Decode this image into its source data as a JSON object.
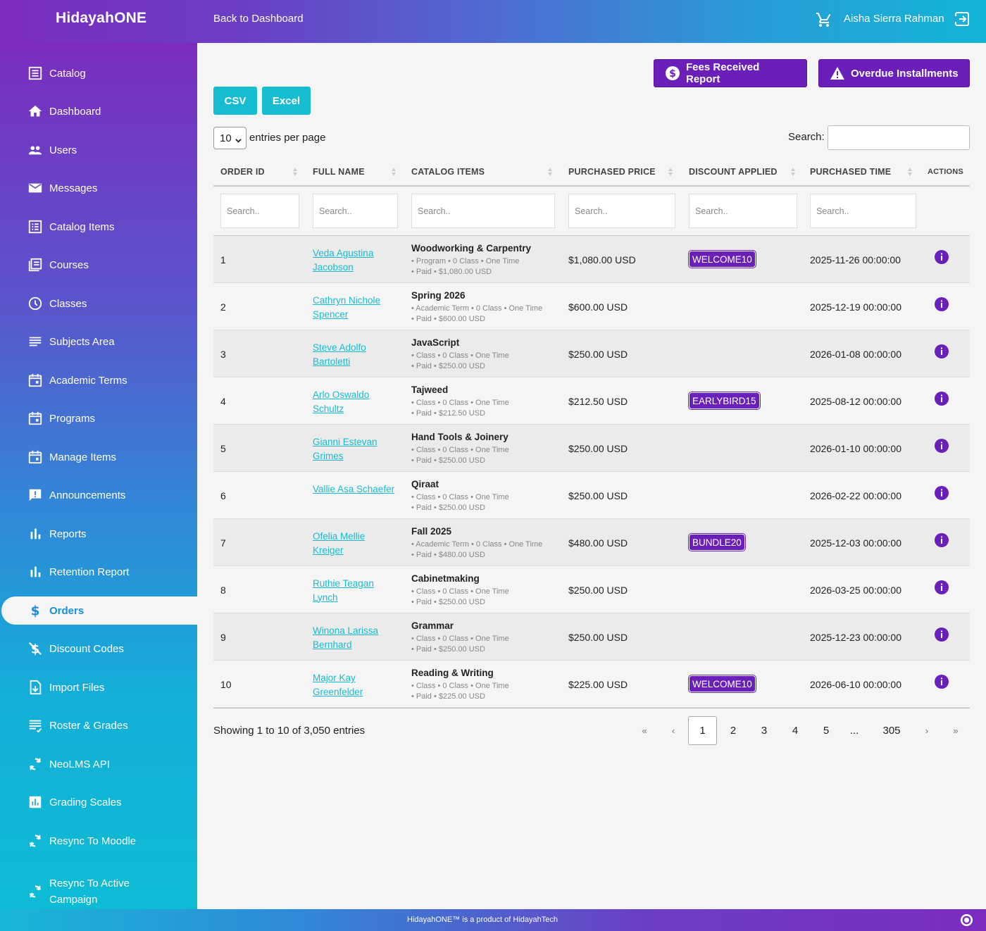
{
  "header": {
    "brand": "HidayahONE",
    "back_link": "Back to Dashboard",
    "user_name": "Aisha Sierra Rahman"
  },
  "sidebar": {
    "items": [
      {
        "label": "Catalog",
        "icon": "catalog-icon"
      },
      {
        "label": "Dashboard",
        "icon": "home-icon"
      },
      {
        "label": "Users",
        "icon": "users-icon"
      },
      {
        "label": "Messages",
        "icon": "mail-icon"
      },
      {
        "label": "Catalog Items",
        "icon": "catalog-items-icon"
      },
      {
        "label": "Courses",
        "icon": "courses-icon"
      },
      {
        "label": "Classes",
        "icon": "clock-icon"
      },
      {
        "label": "Subjects Area",
        "icon": "list-icon"
      },
      {
        "label": "Academic Terms",
        "icon": "calendar-icon"
      },
      {
        "label": "Programs",
        "icon": "calendar-icon"
      },
      {
        "label": "Manage Items",
        "icon": "calendar-icon"
      },
      {
        "label": "Announcements",
        "icon": "announcement-icon"
      },
      {
        "label": "Reports",
        "icon": "bar-chart-icon"
      },
      {
        "label": "Retention Report",
        "icon": "bar-chart-icon"
      },
      {
        "label": "Orders",
        "icon": "dollar-icon",
        "active": true
      },
      {
        "label": "Discount Codes",
        "icon": "no-dollar-icon"
      },
      {
        "label": "Import Files",
        "icon": "import-file-icon"
      },
      {
        "label": "Roster & Grades",
        "icon": "roster-icon"
      },
      {
        "label": "NeoLMS API",
        "icon": "sync-icon"
      },
      {
        "label": "Grading Scales",
        "icon": "chart-box-icon"
      },
      {
        "label": "Resync To Moodle",
        "icon": "sync-icon"
      },
      {
        "label": "Resync To Active Campaign",
        "icon": "sync-icon"
      }
    ]
  },
  "actions": {
    "fees_report": "Fees Received Report",
    "overdue": "Overdue Installments",
    "csv": "CSV",
    "excel": "Excel"
  },
  "table_controls": {
    "per_page_value": "10",
    "per_page_label": "entries per page",
    "search_label": "Search:",
    "filter_placeholder": "Search.."
  },
  "columns": [
    "ORDER ID",
    "FULL NAME",
    "CATALOG ITEMS",
    "PURCHASED PRICE",
    "DISCOUNT APPLIED",
    "PURCHASED TIME",
    "ACTIONS"
  ],
  "rows": [
    {
      "id": "1",
      "name": "Veda Agustina Jacobson",
      "item": "Woodworking & Carpentry",
      "sub1": "• Program  • 0 Class  • One Time",
      "sub2": "• Paid  • $1,080.00 USD",
      "price": "$1,080.00 USD",
      "discount": "WELCOME10",
      "time": "2025-11-26 00:00:00"
    },
    {
      "id": "2",
      "name": "Cathryn Nichole Spencer",
      "item": "Spring 2026",
      "sub1": "• Academic Term  • 0 Class  • One Time",
      "sub2": "• Paid  • $600.00 USD",
      "price": "$600.00 USD",
      "discount": "",
      "time": "2025-12-19 00:00:00"
    },
    {
      "id": "3",
      "name": "Steve Adolfo Bartoletti",
      "item": "JavaScript",
      "sub1": "• Class  • 0 Class  • One Time",
      "sub2": "• Paid  • $250.00 USD",
      "price": "$250.00 USD",
      "discount": "",
      "time": "2026-01-08 00:00:00"
    },
    {
      "id": "4",
      "name": "Arlo Oswaldo Schultz",
      "item": "Tajweed",
      "sub1": "• Class  • 0 Class  • One Time",
      "sub2": "• Paid  • $212.50 USD",
      "price": "$212.50 USD",
      "discount": "EARLYBIRD15",
      "time": "2025-08-12 00:00:00"
    },
    {
      "id": "5",
      "name": "Gianni Estevan Grimes",
      "item": "Hand Tools & Joinery",
      "sub1": "• Class  • 0 Class  • One Time",
      "sub2": "• Paid  • $250.00 USD",
      "price": "$250.00 USD",
      "discount": "",
      "time": "2026-01-10 00:00:00"
    },
    {
      "id": "6",
      "name": "Vallie Asa Schaefer",
      "item": "Qiraat",
      "sub1": "• Class  • 0 Class  • One Time",
      "sub2": "• Paid  • $250.00 USD",
      "price": "$250.00 USD",
      "discount": "",
      "time": "2026-02-22 00:00:00"
    },
    {
      "id": "7",
      "name": "Ofelia Mellie Kreiger",
      "item": "Fall 2025",
      "sub1": "• Academic Term  • 0 Class  • One Time",
      "sub2": "• Paid  • $480.00 USD",
      "price": "$480.00 USD",
      "discount": "BUNDLE20",
      "time": "2025-12-03 00:00:00"
    },
    {
      "id": "8",
      "name": "Ruthie Teagan Lynch",
      "item": "Cabinetmaking",
      "sub1": "• Class  • 0 Class  • One Time",
      "sub2": "• Paid  • $250.00 USD",
      "price": "$250.00 USD",
      "discount": "",
      "time": "2026-03-25 00:00:00"
    },
    {
      "id": "9",
      "name": "Winona Larissa Bernhard",
      "item": "Grammar",
      "sub1": "• Class  • 0 Class  • One Time",
      "sub2": "• Paid  • $250.00 USD",
      "price": "$250.00 USD",
      "discount": "",
      "time": "2025-12-23 00:00:00"
    },
    {
      "id": "10",
      "name": "Major Kay Greenfelder",
      "item": "Reading & Writing",
      "sub1": "• Class  • 0 Class  • One Time",
      "sub2": "• Paid  • $225.00 USD",
      "price": "$225.00 USD",
      "discount": "WELCOME10",
      "time": "2026-06-10 00:00:00"
    }
  ],
  "pagination": {
    "summary": "Showing 1 to 10 of 3,050 entries",
    "first": "«",
    "prev": "‹",
    "pages": [
      "1",
      "2",
      "3",
      "4",
      "5",
      "...",
      "305"
    ],
    "current": "1",
    "next": "›",
    "last": "»"
  },
  "footer": {
    "text": "HidayahONE™ is a product of HidayahTech"
  },
  "colors": {
    "purple": "#6a1fb8",
    "teal": "#17bcd1",
    "active_text": "#1a8fd6"
  }
}
